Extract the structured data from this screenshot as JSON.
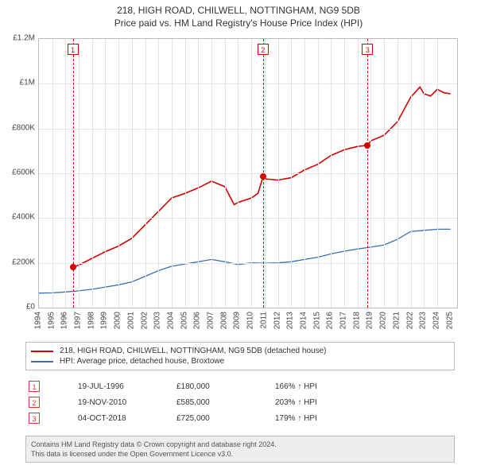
{
  "title": {
    "line1": "218, HIGH ROAD, CHILWELL, NOTTINGHAM, NG9 5DB",
    "line2": "Price paid vs. HM Land Registry's House Price Index (HPI)"
  },
  "chart": {
    "type": "line",
    "background_color": "#ffffff",
    "grid_color": "#e4e4e4",
    "border_color": "#bbbbbb",
    "y": {
      "min": 0,
      "max": 1200000,
      "ticks": [
        0,
        200000,
        400000,
        600000,
        800000,
        1000000,
        1200000
      ],
      "labels": [
        "£0",
        "£200K",
        "£400K",
        "£600K",
        "£800K",
        "£1M",
        "£1.2M"
      ]
    },
    "x": {
      "min": 1994,
      "max": 2025.5,
      "ticks": [
        1994,
        1995,
        1996,
        1997,
        1998,
        1999,
        2000,
        2001,
        2002,
        2003,
        2004,
        2005,
        2006,
        2007,
        2008,
        2009,
        2010,
        2011,
        2012,
        2013,
        2014,
        2015,
        2016,
        2017,
        2018,
        2019,
        2020,
        2021,
        2022,
        2023,
        2024,
        2025
      ],
      "labels": [
        "1994",
        "1995",
        "1996",
        "1997",
        "1998",
        "1999",
        "2000",
        "2001",
        "2002",
        "2003",
        "2004",
        "2005",
        "2006",
        "2007",
        "2008",
        "2009",
        "2010",
        "2011",
        "2012",
        "2013",
        "2014",
        "2015",
        "2016",
        "2017",
        "2018",
        "2019",
        "2020",
        "2021",
        "2022",
        "2023",
        "2024",
        "2025"
      ]
    },
    "series": [
      {
        "name": "218, HIGH ROAD, CHILWELL, NOTTINGHAM, NG9 5DB (detached house)",
        "color": "#d40000",
        "width": 1.6,
        "points": [
          [
            1996.55,
            180000
          ],
          [
            1997,
            190000
          ],
          [
            1998,
            220000
          ],
          [
            1999,
            250000
          ],
          [
            2000,
            275000
          ],
          [
            2001,
            310000
          ],
          [
            2002,
            370000
          ],
          [
            2003,
            430000
          ],
          [
            2004,
            490000
          ],
          [
            2005,
            510000
          ],
          [
            2006,
            535000
          ],
          [
            2007,
            565000
          ],
          [
            2008,
            540000
          ],
          [
            2008.7,
            460000
          ],
          [
            2009,
            470000
          ],
          [
            2010,
            490000
          ],
          [
            2010.5,
            510000
          ],
          [
            2010.88,
            585000
          ],
          [
            2011,
            575000
          ],
          [
            2012,
            570000
          ],
          [
            2013,
            580000
          ],
          [
            2014,
            615000
          ],
          [
            2015,
            640000
          ],
          [
            2016,
            680000
          ],
          [
            2017,
            705000
          ],
          [
            2018,
            720000
          ],
          [
            2018.76,
            725000
          ],
          [
            2019,
            745000
          ],
          [
            2020,
            770000
          ],
          [
            2021,
            830000
          ],
          [
            2022,
            940000
          ],
          [
            2022.7,
            985000
          ],
          [
            2023,
            955000
          ],
          [
            2023.5,
            945000
          ],
          [
            2024,
            975000
          ],
          [
            2024.5,
            960000
          ],
          [
            2025,
            955000
          ]
        ]
      },
      {
        "name": "HPI: Average price, detached house, Broxtowe",
        "color": "#3b6fb0",
        "width": 1.3,
        "points": [
          [
            1994,
            65000
          ],
          [
            1995,
            66000
          ],
          [
            1996,
            70000
          ],
          [
            1997,
            75000
          ],
          [
            1998,
            82000
          ],
          [
            1999,
            92000
          ],
          [
            2000,
            102000
          ],
          [
            2001,
            115000
          ],
          [
            2002,
            140000
          ],
          [
            2003,
            165000
          ],
          [
            2004,
            185000
          ],
          [
            2005,
            195000
          ],
          [
            2006,
            205000
          ],
          [
            2007,
            215000
          ],
          [
            2008,
            205000
          ],
          [
            2009,
            192000
          ],
          [
            2010,
            200000
          ],
          [
            2011,
            198000
          ],
          [
            2012,
            200000
          ],
          [
            2013,
            205000
          ],
          [
            2014,
            215000
          ],
          [
            2015,
            225000
          ],
          [
            2016,
            240000
          ],
          [
            2017,
            252000
          ],
          [
            2018,
            262000
          ],
          [
            2019,
            270000
          ],
          [
            2020,
            280000
          ],
          [
            2021,
            305000
          ],
          [
            2022,
            340000
          ],
          [
            2023,
            345000
          ],
          [
            2024,
            350000
          ],
          [
            2025,
            350000
          ]
        ]
      }
    ],
    "markers": [
      {
        "n": "1",
        "x": 1996.55,
        "y": 180000,
        "color": "#d40000"
      },
      {
        "n": "2",
        "x": 2010.88,
        "y": 585000,
        "color": "#d40000"
      },
      {
        "n": "3",
        "x": 2018.76,
        "y": 725000,
        "color": "#d40000"
      }
    ]
  },
  "legend": {
    "items": [
      {
        "color": "#d40000",
        "label": "218, HIGH ROAD, CHILWELL, NOTTINGHAM, NG9 5DB (detached house)"
      },
      {
        "color": "#3b6fb0",
        "label": "HPI: Average price, detached house, Broxtowe"
      }
    ]
  },
  "sales": [
    {
      "n": "1",
      "date": "19-JUL-1996",
      "price": "£180,000",
      "rel": "166% ↑ HPI"
    },
    {
      "n": "2",
      "date": "19-NOV-2010",
      "price": "£585,000",
      "rel": "203% ↑ HPI"
    },
    {
      "n": "3",
      "date": "04-OCT-2018",
      "price": "£725,000",
      "rel": "179% ↑ HPI"
    }
  ],
  "footer": {
    "line1": "Contains HM Land Registry data © Crown copyright and database right 2024.",
    "line2": "This data is licensed under the Open Government Licence v3.0."
  }
}
